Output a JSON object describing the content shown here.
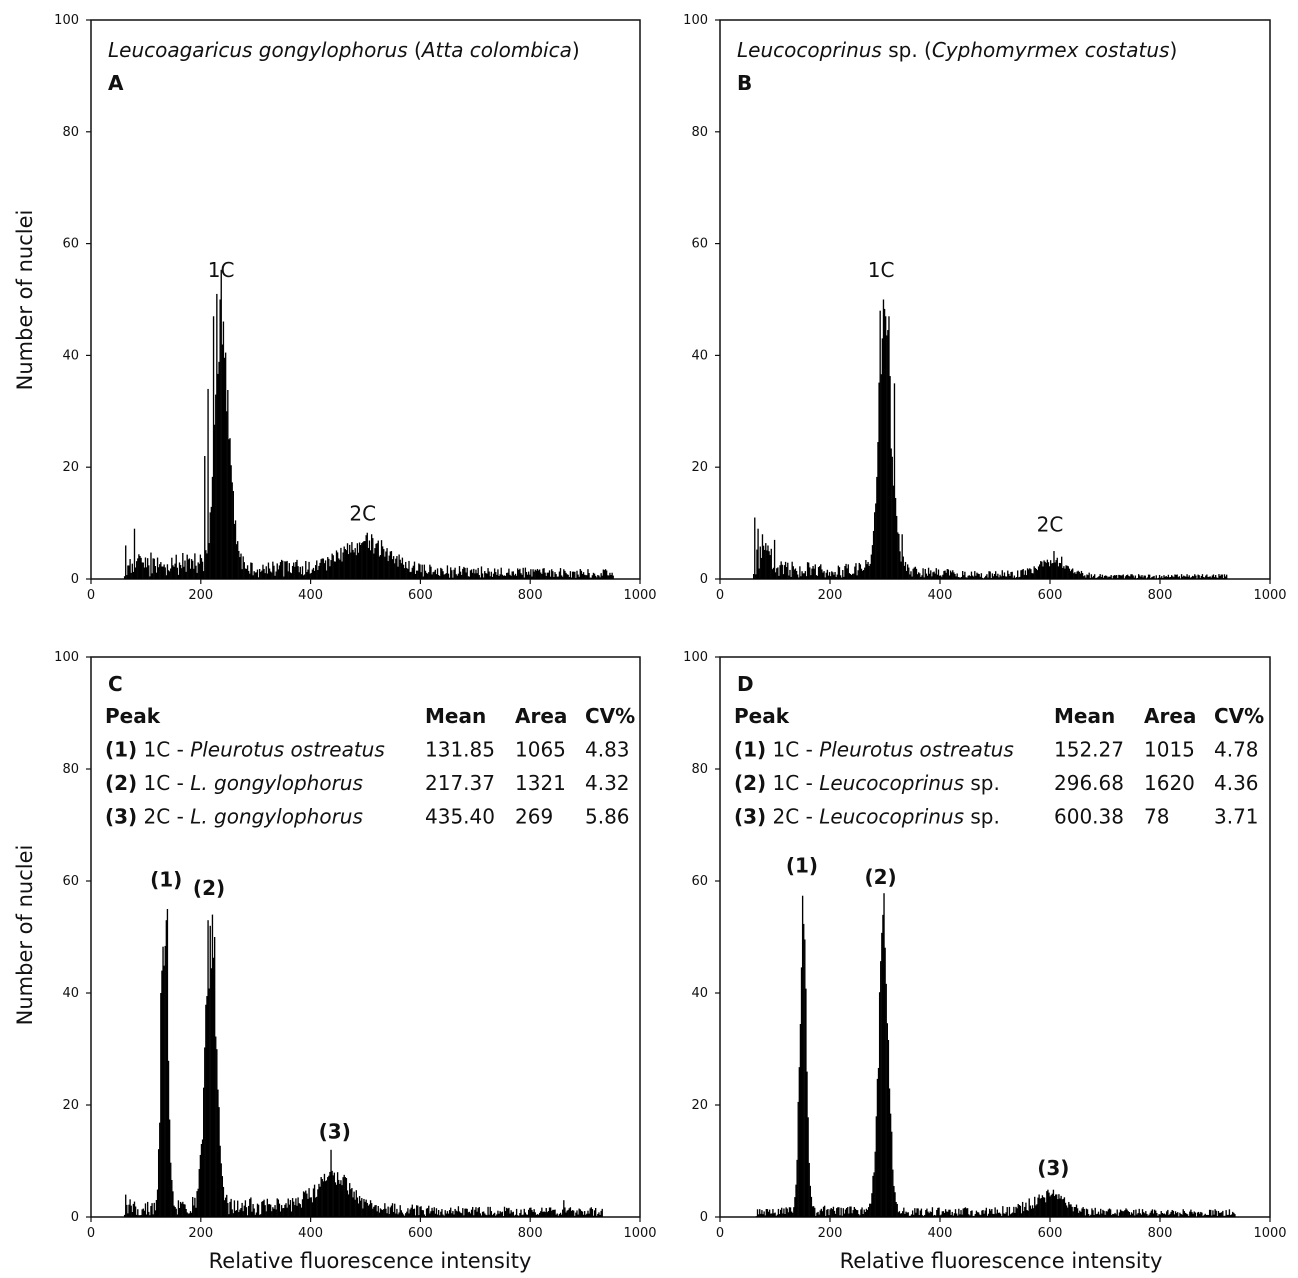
{
  "figure": {
    "y_axis_title": "Number of nuclei",
    "x_axis_title": "Relative fluorescence intensity"
  },
  "chart_data": [
    {
      "type": "bar",
      "panel": "A",
      "title_parts": [
        {
          "text": "Leucoagaricus gongylophorus",
          "italic": true
        },
        {
          "text": " (",
          "italic": false
        },
        {
          "text": "Atta colombica",
          "italic": true
        },
        {
          "text": ")",
          "italic": false
        }
      ],
      "xlim": [
        0,
        1000
      ],
      "ylim": [
        0,
        100
      ],
      "xticks": [
        0,
        200,
        400,
        600,
        800,
        1000
      ],
      "yticks": [
        0,
        20,
        40,
        60,
        80,
        100
      ],
      "x_start": 60,
      "x_end": 950,
      "baseline": [
        [
          60,
          3
        ],
        [
          100,
          3
        ],
        [
          150,
          2.5
        ],
        [
          195,
          3
        ],
        [
          260,
          2
        ],
        [
          320,
          2
        ],
        [
          420,
          2
        ],
        [
          600,
          1.5
        ],
        [
          800,
          1.2
        ],
        [
          950,
          1
        ]
      ],
      "peaks": [
        {
          "center": 237,
          "height": 48,
          "sigma": 11,
          "skew": 1.2
        },
        {
          "center": 500,
          "height": 5,
          "sigma": 40,
          "skew": 1
        }
      ],
      "spikes": [
        [
          62,
          6
        ],
        [
          78,
          9
        ],
        [
          205,
          22
        ],
        [
          212,
          34
        ],
        [
          222,
          47
        ],
        [
          228,
          51
        ],
        [
          233,
          50
        ],
        [
          245,
          30
        ],
        [
          250,
          25
        ],
        [
          510,
          8
        ],
        [
          545,
          5
        ]
      ],
      "peak_labels": [
        {
          "text": "1C",
          "x": 237,
          "y": 54
        },
        {
          "text": "2C",
          "x": 495,
          "y": 10.5
        }
      ],
      "table": null
    },
    {
      "type": "bar",
      "panel": "B",
      "title_parts": [
        {
          "text": "Leucocoprinus",
          "italic": true
        },
        {
          "text": " sp. (",
          "italic": false
        },
        {
          "text": "Cyphomyrmex costatus",
          "italic": true
        },
        {
          "text": ")",
          "italic": false
        }
      ],
      "xlim": [
        0,
        1000
      ],
      "ylim": [
        0,
        100
      ],
      "xticks": [
        0,
        200,
        400,
        600,
        800,
        1000
      ],
      "yticks": [
        0,
        20,
        40,
        60,
        80,
        100
      ],
      "x_start": 60,
      "x_end": 920,
      "baseline": [
        [
          60,
          5
        ],
        [
          80,
          4
        ],
        [
          110,
          2
        ],
        [
          200,
          1.5
        ],
        [
          260,
          2
        ],
        [
          350,
          1.5
        ],
        [
          450,
          0.8
        ],
        [
          560,
          1
        ],
        [
          700,
          0.5
        ],
        [
          900,
          0.5
        ],
        [
          920,
          0.5
        ]
      ],
      "peaks": [
        {
          "center": 297,
          "height": 46,
          "sigma": 10,
          "skew": 1.3
        },
        {
          "center": 605,
          "height": 2.5,
          "sigma": 25,
          "skew": 1
        }
      ],
      "spikes": [
        [
          62,
          11
        ],
        [
          68,
          9
        ],
        [
          75,
          8
        ],
        [
          85,
          6
        ],
        [
          98,
          7
        ],
        [
          290,
          48
        ],
        [
          295,
          50
        ],
        [
          300,
          47
        ],
        [
          306,
          47
        ],
        [
          315,
          35
        ],
        [
          330,
          8
        ],
        [
          605,
          5
        ],
        [
          620,
          4
        ]
      ],
      "peak_labels": [
        {
          "text": "1C",
          "x": 293,
          "y": 54
        },
        {
          "text": "2C",
          "x": 600,
          "y": 8.5
        }
      ],
      "table": null
    },
    {
      "type": "bar",
      "panel": "C",
      "title_parts": [],
      "xlim": [
        0,
        1000
      ],
      "ylim": [
        0,
        100
      ],
      "xticks": [
        0,
        200,
        400,
        600,
        800,
        1000
      ],
      "yticks": [
        0,
        20,
        40,
        60,
        80,
        100
      ],
      "x_start": 60,
      "x_end": 930,
      "baseline": [
        [
          60,
          2
        ],
        [
          110,
          1.5
        ],
        [
          200,
          2
        ],
        [
          260,
          2
        ],
        [
          400,
          2
        ],
        [
          600,
          1.2
        ],
        [
          800,
          1
        ],
        [
          930,
          1
        ]
      ],
      "peaks": [
        {
          "center": 133,
          "height": 50,
          "sigma": 6,
          "skew": 1
        },
        {
          "center": 217,
          "height": 50,
          "sigma": 10,
          "skew": 1
        },
        {
          "center": 440,
          "height": 6,
          "sigma": 30,
          "skew": 1
        }
      ],
      "spikes": [
        [
          62,
          4
        ],
        [
          126,
          40
        ],
        [
          128,
          44
        ],
        [
          135,
          53
        ],
        [
          138,
          55
        ],
        [
          211,
          53
        ],
        [
          215,
          52
        ],
        [
          219,
          54
        ],
        [
          223,
          50
        ],
        [
          435,
          12
        ],
        [
          448,
          8
        ],
        [
          860,
          3
        ]
      ],
      "peak_labels": [
        {
          "text": "(1)",
          "x": 137,
          "y": 59,
          "bold": true
        },
        {
          "text": "(2)",
          "x": 215,
          "y": 57.5,
          "bold": true
        },
        {
          "text": "(3)",
          "x": 444,
          "y": 14,
          "bold": true
        }
      ],
      "table": {
        "headers": [
          "Peak",
          "Mean",
          "Area",
          "CV%"
        ],
        "rows": [
          {
            "num": "(1)",
            "label": [
              {
                "text": " 1C - ",
                "italic": false
              },
              {
                "text": "Pleurotus ostreatus",
                "italic": true
              }
            ],
            "mean": "131.85",
            "area": "1065",
            "cv": "4.83"
          },
          {
            "num": "(2)",
            "label": [
              {
                "text": " 1C - ",
                "italic": false
              },
              {
                "text": "L. gongylophorus",
                "italic": true
              }
            ],
            "mean": "217.37",
            "area": "1321",
            "cv": "4.32"
          },
          {
            "num": "(3)",
            "label": [
              {
                "text": " 2C - ",
                "italic": false
              },
              {
                "text": "L. gongylophorus",
                "italic": true
              }
            ],
            "mean": "435.40",
            "area": "269",
            "cv": "5.86"
          }
        ]
      }
    },
    {
      "type": "bar",
      "panel": "D",
      "title_parts": [],
      "xlim": [
        0,
        1000
      ],
      "ylim": [
        0,
        100
      ],
      "xticks": [
        0,
        200,
        400,
        600,
        800,
        1000
      ],
      "yticks": [
        0,
        20,
        40,
        60,
        80,
        100
      ],
      "x_start": 65,
      "x_end": 935,
      "baseline": [
        [
          65,
          0.8
        ],
        [
          120,
          1
        ],
        [
          200,
          1.2
        ],
        [
          260,
          1
        ],
        [
          350,
          1
        ],
        [
          500,
          1
        ],
        [
          560,
          1.5
        ],
        [
          650,
          1
        ],
        [
          800,
          0.8
        ],
        [
          935,
          0.8
        ]
      ],
      "peaks": [
        {
          "center": 150,
          "height": 52,
          "sigma": 6,
          "skew": 1
        },
        {
          "center": 296,
          "height": 52,
          "sigma": 9,
          "skew": 1
        },
        {
          "center": 600,
          "height": 3,
          "sigma": 25,
          "skew": 1
        }
      ],
      "spikes": [
        [
          148,
          59
        ],
        [
          152,
          55
        ],
        [
          290,
          52
        ],
        [
          294,
          56
        ],
        [
          297,
          55
        ],
        [
          300,
          50
        ],
        [
          255,
          6
        ],
        [
          610,
          5
        ],
        [
          855,
          4
        ],
        [
          925,
          2
        ]
      ],
      "peak_labels": [
        {
          "text": "(1)",
          "x": 149,
          "y": 61.5,
          "bold": true
        },
        {
          "text": "(2)",
          "x": 292,
          "y": 59.5,
          "bold": true
        },
        {
          "text": "(3)",
          "x": 606,
          "y": 7.5,
          "bold": true
        }
      ],
      "table": {
        "headers": [
          "Peak",
          "Mean",
          "Area",
          "CV%"
        ],
        "rows": [
          {
            "num": "(1)",
            "label": [
              {
                "text": " 1C - ",
                "italic": false
              },
              {
                "text": "Pleurotus ostreatus",
                "italic": true
              }
            ],
            "mean": "152.27",
            "area": "1015",
            "cv": "4.78"
          },
          {
            "num": "(2)",
            "label": [
              {
                "text": " 1C - ",
                "italic": false
              },
              {
                "text": "Leucocoprinus",
                "italic": true
              },
              {
                "text": " sp.",
                "italic": false
              }
            ],
            "mean": "296.68",
            "area": "1620",
            "cv": "4.36"
          },
          {
            "num": "(3)",
            "label": [
              {
                "text": " 2C - ",
                "italic": false
              },
              {
                "text": "Leucocoprinus",
                "italic": true
              },
              {
                "text": " sp.",
                "italic": false
              }
            ],
            "mean": "600.38",
            "area": "78",
            "cv": "3.71"
          }
        ]
      }
    }
  ]
}
